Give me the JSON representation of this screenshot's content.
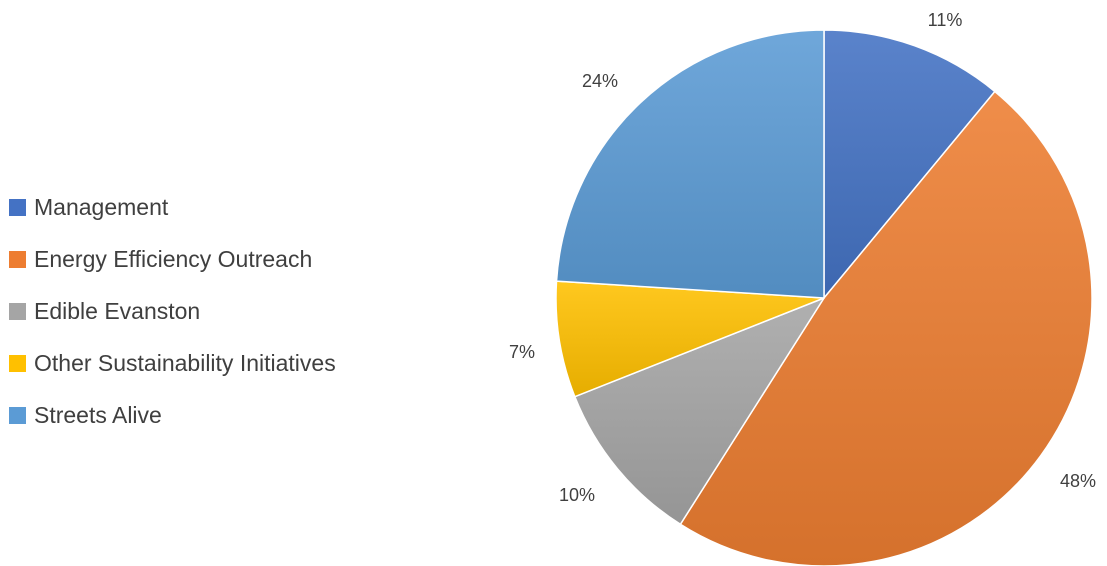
{
  "chart_data": {
    "type": "pie",
    "title": "",
    "categories": [
      "Management",
      "Energy Efficiency Outreach",
      "Edible Evanston",
      "Other Sustainability Initiatives",
      "Streets Alive"
    ],
    "values": [
      11,
      48,
      10,
      7,
      24
    ],
    "data_labels": [
      "11%",
      "48%",
      "10%",
      "7%",
      "24%"
    ],
    "colors": [
      "#4472C4",
      "#ED7D31",
      "#A5A5A5",
      "#FFC000",
      "#5B9BD5"
    ],
    "legend_position": "left",
    "start_angle": "12 o'clock, clockwise"
  }
}
